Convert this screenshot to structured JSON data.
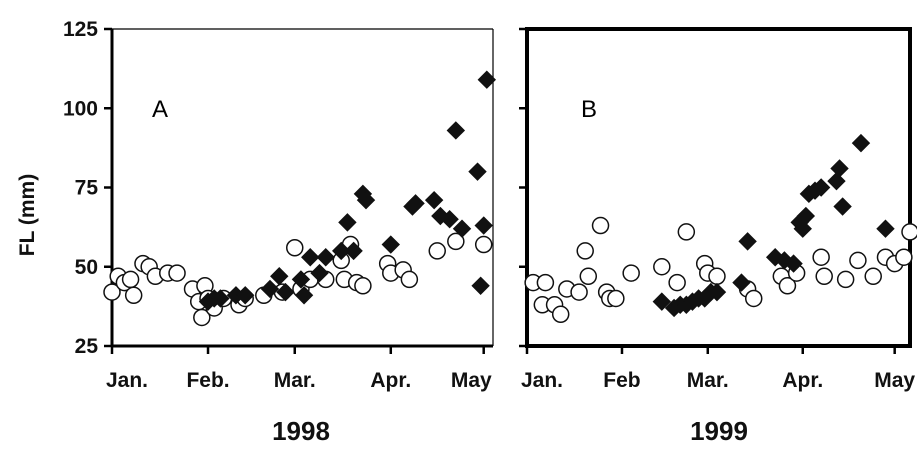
{
  "chart_data": [
    {
      "type": "scatter",
      "panel_label": "A",
      "year": "1998",
      "ylabel": "FL (mm)",
      "ylim": [
        25,
        125
      ],
      "yticks": [
        "25",
        "50",
        "75",
        "100",
        "125"
      ],
      "xlim": [
        "1998-01-01",
        "1998-05-04"
      ],
      "xticks": [
        {
          "label": "Jan.",
          "date": "1998-01-01"
        },
        {
          "label": "Feb.",
          "date": "1998-02-01"
        },
        {
          "label": "Mar.",
          "date": "1998-03-01"
        },
        {
          "label": "Apr.",
          "date": "1998-04-01"
        },
        {
          "label": "May",
          "date": "1998-05-01"
        }
      ],
      "series": [
        {
          "marker": "open-circle",
          "points": [
            [
              "1998-01-01",
              42
            ],
            [
              "1998-01-03",
              47
            ],
            [
              "1998-01-05",
              45
            ],
            [
              "1998-01-07",
              46
            ],
            [
              "1998-01-08",
              41
            ],
            [
              "1998-01-11",
              51
            ],
            [
              "1998-01-13",
              50
            ],
            [
              "1998-01-15",
              47
            ],
            [
              "1998-01-19",
              48
            ],
            [
              "1998-01-22",
              48
            ],
            [
              "1998-01-27",
              43
            ],
            [
              "1998-01-29",
              39
            ],
            [
              "1998-01-30",
              34
            ],
            [
              "1998-01-31",
              44
            ],
            [
              "1998-02-01",
              40
            ],
            [
              "1998-02-03",
              37
            ],
            [
              "1998-02-06",
              40
            ],
            [
              "1998-02-11",
              38
            ],
            [
              "1998-02-13",
              40
            ],
            [
              "1998-02-19",
              41
            ],
            [
              "1998-02-25",
              42
            ],
            [
              "1998-03-01",
              56
            ],
            [
              "1998-03-03",
              43
            ],
            [
              "1998-03-06",
              46
            ],
            [
              "1998-03-11",
              46
            ],
            [
              "1998-03-16",
              52
            ],
            [
              "1998-03-17",
              46
            ],
            [
              "1998-03-19",
              57
            ],
            [
              "1998-03-21",
              45
            ],
            [
              "1998-03-23",
              44
            ],
            [
              "1998-03-31",
              51
            ],
            [
              "1998-04-01",
              48
            ],
            [
              "1998-04-05",
              49
            ],
            [
              "1998-04-07",
              46
            ],
            [
              "1998-04-16",
              55
            ],
            [
              "1998-04-22",
              58
            ],
            [
              "1998-05-01",
              57
            ]
          ]
        },
        {
          "marker": "filled-diamond",
          "points": [
            [
              "1998-02-01",
              39
            ],
            [
              "1998-02-03",
              40
            ],
            [
              "1998-02-05",
              40
            ],
            [
              "1998-02-10",
              41
            ],
            [
              "1998-02-13",
              41
            ],
            [
              "1998-02-21",
              43
            ],
            [
              "1998-02-24",
              47
            ],
            [
              "1998-02-26",
              42
            ],
            [
              "1998-03-03",
              46
            ],
            [
              "1998-03-04",
              41
            ],
            [
              "1998-03-06",
              53
            ],
            [
              "1998-03-09",
              48
            ],
            [
              "1998-03-11",
              53
            ],
            [
              "1998-03-16",
              55
            ],
            [
              "1998-03-18",
              64
            ],
            [
              "1998-03-20",
              55
            ],
            [
              "1998-03-23",
              73
            ],
            [
              "1998-03-24",
              71
            ],
            [
              "1998-04-01",
              57
            ],
            [
              "1998-04-08",
              69
            ],
            [
              "1998-04-09",
              70
            ],
            [
              "1998-04-15",
              71
            ],
            [
              "1998-04-17",
              66
            ],
            [
              "1998-04-20",
              65
            ],
            [
              "1998-04-22",
              93
            ],
            [
              "1998-04-24",
              62
            ],
            [
              "1998-04-29",
              80
            ],
            [
              "1998-04-30",
              44
            ],
            [
              "1998-05-01",
              63
            ],
            [
              "1998-05-02",
              109
            ]
          ]
        }
      ]
    },
    {
      "type": "scatter",
      "panel_label": "B",
      "year": "1999",
      "ylim": [
        25,
        125
      ],
      "xlim": [
        "1999-01-01",
        "1999-05-06"
      ],
      "xticks": [
        {
          "label": "Jan.",
          "date": "1999-01-01"
        },
        {
          "label": "Feb",
          "date": "1999-02-01"
        },
        {
          "label": "Mar.",
          "date": "1999-03-01"
        },
        {
          "label": "Apr.",
          "date": "1999-04-01"
        },
        {
          "label": "May",
          "date": "1999-05-01"
        }
      ],
      "series": [
        {
          "marker": "open-circle",
          "points": [
            [
              "1999-01-03",
              45
            ],
            [
              "1999-01-06",
              38
            ],
            [
              "1999-01-07",
              45
            ],
            [
              "1999-01-10",
              38
            ],
            [
              "1999-01-12",
              35
            ],
            [
              "1999-01-14",
              43
            ],
            [
              "1999-01-18",
              42
            ],
            [
              "1999-01-20",
              55
            ],
            [
              "1999-01-21",
              47
            ],
            [
              "1999-01-25",
              63
            ],
            [
              "1999-01-27",
              42
            ],
            [
              "1999-01-28",
              40
            ],
            [
              "1999-01-30",
              40
            ],
            [
              "1999-02-04",
              48
            ],
            [
              "1999-02-14",
              50
            ],
            [
              "1999-02-19",
              45
            ],
            [
              "1999-02-22",
              61
            ],
            [
              "1999-02-28",
              51
            ],
            [
              "1999-03-01",
              48
            ],
            [
              "1999-03-04",
              47
            ],
            [
              "1999-03-14",
              43
            ],
            [
              "1999-03-16",
              40
            ],
            [
              "1999-03-25",
              47
            ],
            [
              "1999-03-27",
              44
            ],
            [
              "1999-03-30",
              48
            ],
            [
              "1999-04-07",
              53
            ],
            [
              "1999-04-08",
              47
            ],
            [
              "1999-04-15",
              46
            ],
            [
              "1999-04-19",
              52
            ],
            [
              "1999-04-24",
              47
            ],
            [
              "1999-04-28",
              53
            ],
            [
              "1999-05-01",
              51
            ],
            [
              "1999-05-04",
              53
            ],
            [
              "1999-05-06",
              61
            ]
          ]
        },
        {
          "marker": "filled-diamond",
          "points": [
            [
              "1999-02-14",
              39
            ],
            [
              "1999-02-18",
              37
            ],
            [
              "1999-02-20",
              38
            ],
            [
              "1999-02-22",
              38
            ],
            [
              "1999-02-24",
              39
            ],
            [
              "1999-02-26",
              40
            ],
            [
              "1999-02-28",
              40
            ],
            [
              "1999-03-02",
              42
            ],
            [
              "1999-03-04",
              42
            ],
            [
              "1999-03-12",
              45
            ],
            [
              "1999-03-14",
              58
            ],
            [
              "1999-03-23",
              53
            ],
            [
              "1999-03-26",
              52
            ],
            [
              "1999-03-29",
              51
            ],
            [
              "1999-03-31",
              64
            ],
            [
              "1999-04-01",
              62
            ],
            [
              "1999-04-02",
              66
            ],
            [
              "1999-04-03",
              73
            ],
            [
              "1999-04-05",
              74
            ],
            [
              "1999-04-07",
              75
            ],
            [
              "1999-04-12",
              77
            ],
            [
              "1999-04-13",
              81
            ],
            [
              "1999-04-14",
              69
            ],
            [
              "1999-04-20",
              89
            ],
            [
              "1999-04-28",
              62
            ]
          ]
        }
      ]
    }
  ]
}
